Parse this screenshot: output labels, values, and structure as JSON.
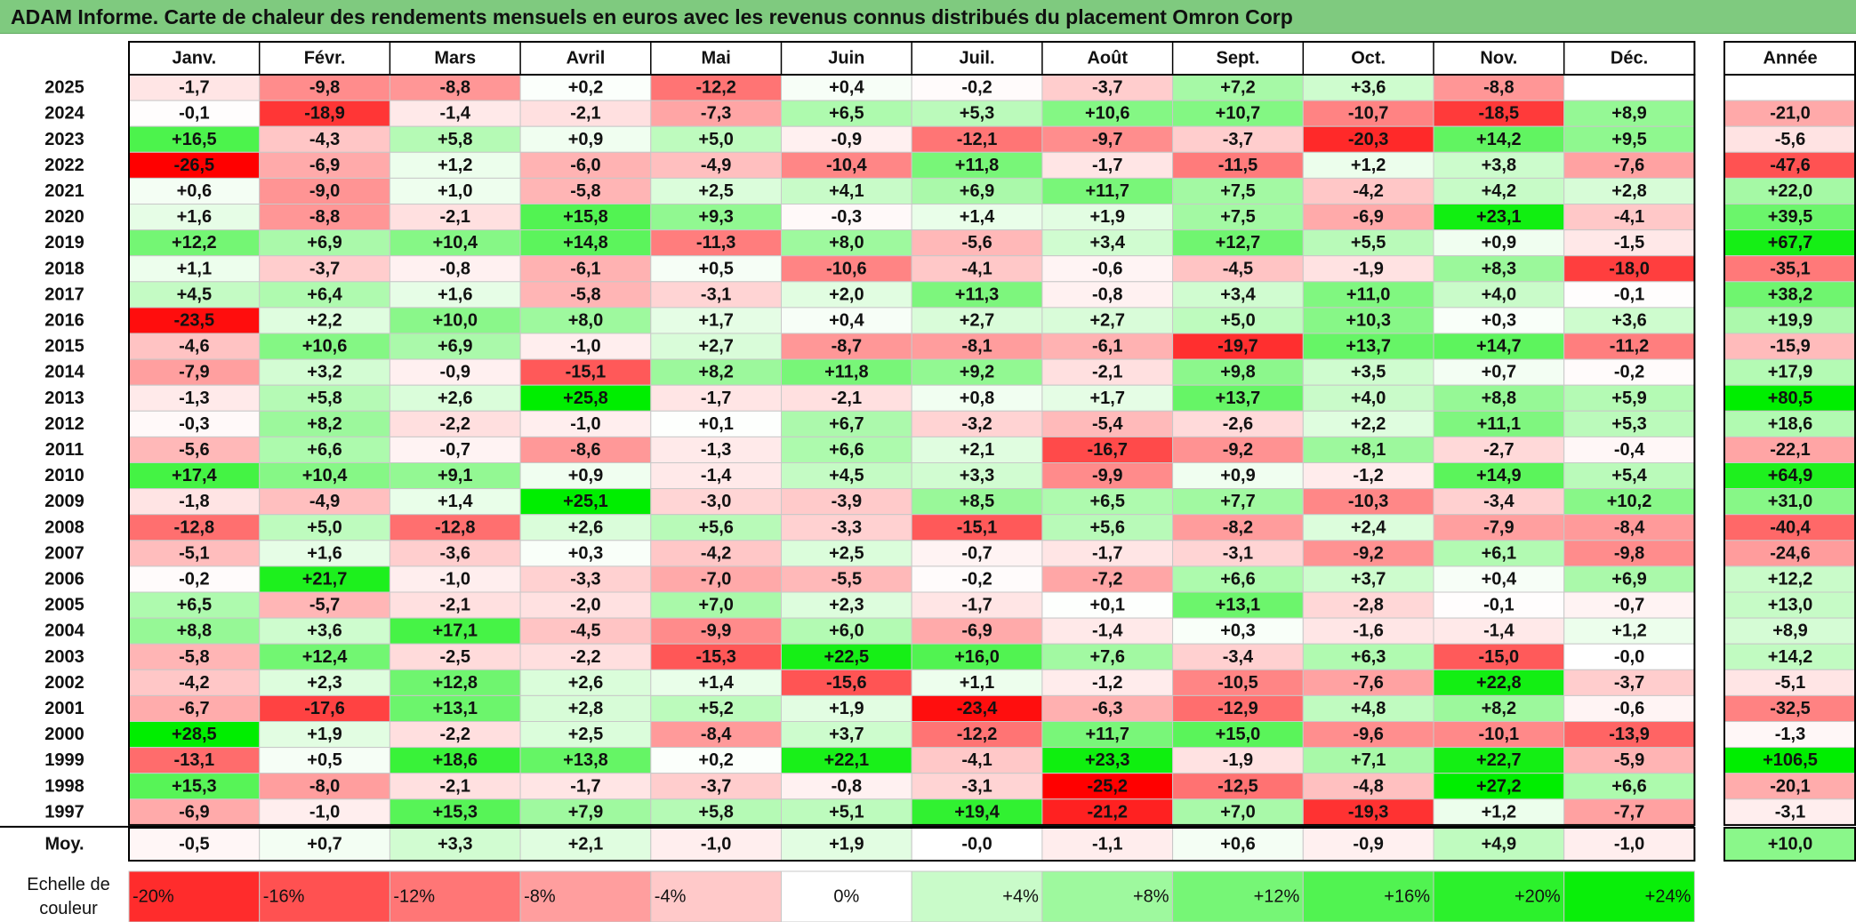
{
  "title": "ADAM Informe. Carte de chaleur des rendements mensuels en euros avec les revenus connus distribués du placement Omron Corp",
  "chart_data": {
    "type": "heatmap",
    "months": [
      "Janv.",
      "Févr.",
      "Mars",
      "Avril",
      "Mai",
      "Juin",
      "Juil.",
      "Août",
      "Sept.",
      "Oct.",
      "Nov.",
      "Déc."
    ],
    "annual_header": "Année",
    "years": [
      "2025",
      "2024",
      "2023",
      "2022",
      "2021",
      "2020",
      "2019",
      "2018",
      "2017",
      "2016",
      "2015",
      "2014",
      "2013",
      "2012",
      "2011",
      "2010",
      "2009",
      "2008",
      "2007",
      "2006",
      "2005",
      "2004",
      "2003",
      "2002",
      "2001",
      "2000",
      "1999",
      "1998",
      "1997"
    ],
    "values": [
      [
        "-1,7",
        "-9,8",
        "-8,8",
        "+0,2",
        "-12,2",
        "+0,4",
        "-0,2",
        "-3,7",
        "+7,2",
        "+3,6",
        "-8,8",
        ""
      ],
      [
        "-0,1",
        "-18,9",
        "-1,4",
        "-2,1",
        "-7,3",
        "+6,5",
        "+5,3",
        "+10,6",
        "+10,7",
        "-10,7",
        "-18,5",
        "+8,9"
      ],
      [
        "+16,5",
        "-4,3",
        "+5,8",
        "+0,9",
        "+5,0",
        "-0,9",
        "-12,1",
        "-9,7",
        "-3,7",
        "-20,3",
        "+14,2",
        "+9,5"
      ],
      [
        "-26,5",
        "-6,9",
        "+1,2",
        "-6,0",
        "-4,9",
        "-10,4",
        "+11,8",
        "-1,7",
        "-11,5",
        "+1,2",
        "+3,8",
        "-7,6"
      ],
      [
        "+0,6",
        "-9,0",
        "+1,0",
        "-5,8",
        "+2,5",
        "+4,1",
        "+6,9",
        "+11,7",
        "+7,5",
        "-4,2",
        "+4,2",
        "+2,8"
      ],
      [
        "+1,6",
        "-8,8",
        "-2,1",
        "+15,8",
        "+9,3",
        "-0,3",
        "+1,4",
        "+1,9",
        "+7,5",
        "-6,9",
        "+23,1",
        "-4,1"
      ],
      [
        "+12,2",
        "+6,9",
        "+10,4",
        "+14,8",
        "-11,3",
        "+8,0",
        "-5,6",
        "+3,4",
        "+12,7",
        "+5,5",
        "+0,9",
        "-1,5"
      ],
      [
        "+1,1",
        "-3,7",
        "-0,8",
        "-6,1",
        "+0,5",
        "-10,6",
        "-4,1",
        "-0,6",
        "-4,5",
        "-1,9",
        "+8,3",
        "-18,0"
      ],
      [
        "+4,5",
        "+6,4",
        "+1,6",
        "-5,8",
        "-3,1",
        "+2,0",
        "+11,3",
        "-0,8",
        "+3,4",
        "+11,0",
        "+4,0",
        "-0,1"
      ],
      [
        "-23,5",
        "+2,2",
        "+10,0",
        "+8,0",
        "+1,7",
        "+0,4",
        "+2,7",
        "+2,7",
        "+5,0",
        "+10,3",
        "+0,3",
        "+3,6"
      ],
      [
        "-4,6",
        "+10,6",
        "+6,9",
        "-1,0",
        "+2,7",
        "-8,7",
        "-8,1",
        "-6,1",
        "-19,7",
        "+13,7",
        "+14,7",
        "-11,2"
      ],
      [
        "-7,9",
        "+3,2",
        "-0,9",
        "-15,1",
        "+8,2",
        "+11,8",
        "+9,2",
        "-2,1",
        "+9,8",
        "+3,5",
        "+0,7",
        "-0,2"
      ],
      [
        "-1,3",
        "+5,8",
        "+2,6",
        "+25,8",
        "-1,7",
        "-2,1",
        "+0,8",
        "+1,7",
        "+13,7",
        "+4,0",
        "+8,8",
        "+5,9"
      ],
      [
        "-0,3",
        "+8,2",
        "-2,2",
        "-1,0",
        "+0,1",
        "+6,7",
        "-3,2",
        "-5,4",
        "-2,6",
        "+2,2",
        "+11,1",
        "+5,3"
      ],
      [
        "-5,6",
        "+6,6",
        "-0,7",
        "-8,6",
        "-1,3",
        "+6,6",
        "+2,1",
        "-16,7",
        "-9,2",
        "+8,1",
        "-2,7",
        "-0,4"
      ],
      [
        "+17,4",
        "+10,4",
        "+9,1",
        "+0,9",
        "-1,4",
        "+4,5",
        "+3,3",
        "-9,9",
        "+0,9",
        "-1,2",
        "+14,9",
        "+5,4"
      ],
      [
        "-1,8",
        "-4,9",
        "+1,4",
        "+25,1",
        "-3,0",
        "-3,9",
        "+8,5",
        "+6,5",
        "+7,7",
        "-10,3",
        "-3,4",
        "+10,2"
      ],
      [
        "-12,8",
        "+5,0",
        "-12,8",
        "+2,6",
        "+5,6",
        "-3,3",
        "-15,1",
        "+5,6",
        "-8,2",
        "+2,4",
        "-7,9",
        "-8,4"
      ],
      [
        "-5,1",
        "+1,6",
        "-3,6",
        "+0,3",
        "-4,2",
        "+2,5",
        "-0,7",
        "-1,7",
        "-3,1",
        "-9,2",
        "+6,1",
        "-9,8"
      ],
      [
        "-0,2",
        "+21,7",
        "-1,0",
        "-3,3",
        "-7,0",
        "-5,5",
        "-0,2",
        "-7,2",
        "+6,6",
        "+3,7",
        "+0,4",
        "+6,9"
      ],
      [
        "+6,5",
        "-5,7",
        "-2,1",
        "-2,0",
        "+7,0",
        "+2,3",
        "-1,7",
        "+0,1",
        "+13,1",
        "-2,8",
        "-0,1",
        "-0,7"
      ],
      [
        "+8,8",
        "+3,6",
        "+17,1",
        "-4,5",
        "-9,9",
        "+6,0",
        "-6,9",
        "-1,4",
        "+0,3",
        "-1,6",
        "-1,4",
        "+1,2"
      ],
      [
        "-5,8",
        "+12,4",
        "-2,5",
        "-2,2",
        "-15,3",
        "+22,5",
        "+16,0",
        "+7,6",
        "-3,4",
        "+6,3",
        "-15,0",
        "-0,0"
      ],
      [
        "-4,2",
        "+2,3",
        "+12,8",
        "+2,6",
        "+1,4",
        "-15,6",
        "+1,1",
        "-1,2",
        "-10,5",
        "-7,6",
        "+22,8",
        "-3,7"
      ],
      [
        "-6,7",
        "-17,6",
        "+13,1",
        "+2,8",
        "+5,2",
        "+1,9",
        "-23,4",
        "-6,3",
        "-12,9",
        "+4,8",
        "+8,2",
        "-0,6"
      ],
      [
        "+28,5",
        "+1,9",
        "-2,2",
        "+2,5",
        "-8,4",
        "+3,7",
        "-12,2",
        "+11,7",
        "+15,0",
        "-9,6",
        "-10,1",
        "-13,9"
      ],
      [
        "-13,1",
        "+0,5",
        "+18,6",
        "+13,8",
        "+0,2",
        "+22,1",
        "-4,1",
        "+23,3",
        "-1,9",
        "+7,1",
        "+22,7",
        "-5,9"
      ],
      [
        "+15,3",
        "-8,0",
        "-2,1",
        "-1,7",
        "-3,7",
        "-0,8",
        "-3,1",
        "-25,2",
        "-12,5",
        "-4,8",
        "+27,2",
        "+6,6"
      ],
      [
        "-6,9",
        "-1,0",
        "+15,3",
        "+7,9",
        "+5,8",
        "+5,1",
        "+19,4",
        "-21,2",
        "+7,0",
        "-19,3",
        "+1,2",
        "-7,7"
      ]
    ],
    "annual": [
      "",
      "-21,0",
      "-5,6",
      "-47,6",
      "+22,0",
      "+39,5",
      "+67,7",
      "-35,1",
      "+38,2",
      "+19,9",
      "-15,9",
      "+17,9",
      "+80,5",
      "+18,6",
      "-22,1",
      "+64,9",
      "+31,0",
      "-40,4",
      "-24,6",
      "+12,2",
      "+13,0",
      "+8,9",
      "+14,2",
      "-5,1",
      "-32,5",
      "-1,3",
      "+106,5",
      "-20,1",
      "-3,1"
    ],
    "average_label": "Moy.",
    "average": [
      "-0,5",
      "+0,7",
      "+3,3",
      "+2,1",
      "-1,0",
      "+1,9",
      "-0,0",
      "-1,1",
      "+0,6",
      "-0,9",
      "+4,9",
      "-1,0"
    ],
    "average_annual": "+10,0",
    "color_scale": {
      "label_line1": "Echelle de",
      "label_line2": "couleur",
      "stops": [
        {
          "label": "-20%",
          "value": -20
        },
        {
          "label": "-16%",
          "value": -16
        },
        {
          "label": "-12%",
          "value": -12
        },
        {
          "label": "-8%",
          "value": -8
        },
        {
          "label": "-4%",
          "value": -4
        },
        {
          "label": "0%",
          "value": 0
        },
        {
          "label": "+4%",
          "value": 4
        },
        {
          "label": "+8%",
          "value": 8
        },
        {
          "label": "+12%",
          "value": 12
        },
        {
          "label": "+16%",
          "value": 16
        },
        {
          "label": "+20%",
          "value": 20
        },
        {
          "label": "+24%",
          "value": 24
        }
      ]
    },
    "colors": {
      "negative_max": "#ff0000",
      "neutral": "#ffffff",
      "positive_max": "#00ee00",
      "title_bar": "#7fca7f"
    }
  }
}
